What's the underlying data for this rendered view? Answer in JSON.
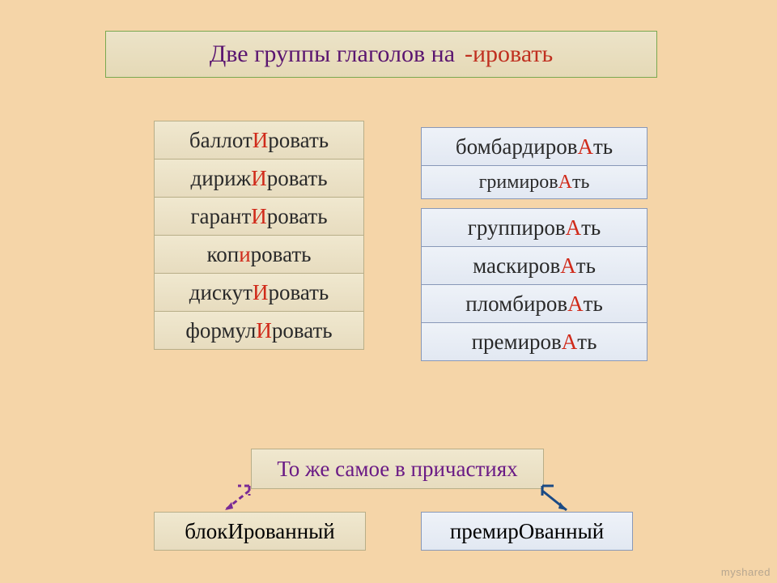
{
  "title": {
    "main": "Две группы глаголов на",
    "suffix": "-ировать"
  },
  "left_words": [
    {
      "pre": "баллот",
      "hl": "И",
      "post": "ровать"
    },
    {
      "pre": "дириж",
      "hl": "И",
      "post": "ровать"
    },
    {
      "pre": "гарант",
      "hl": "И",
      "post": "ровать"
    },
    {
      "pre": "коп",
      "hl": "и",
      "post": "ровать"
    },
    {
      "pre": "дискут",
      "hl": "И",
      "post": "ровать"
    },
    {
      "pre": "формул",
      "hl": "И",
      "post": "ровать"
    }
  ],
  "right_words": [
    {
      "pre": "бомбардиров",
      "hl": "А",
      "post": "ть",
      "small": false
    },
    {
      "pre": "гримиров",
      "hl": "А",
      "post": "ть",
      "small": true
    },
    {
      "pre": "группиров",
      "hl": "А",
      "post": "ть",
      "small": false,
      "gap_before": true
    },
    {
      "pre": "маскиров",
      "hl": "А",
      "post": "ть",
      "small": false
    },
    {
      "pre": "пломбиров",
      "hl": "А",
      "post": "ть",
      "small": false
    },
    {
      "pre": "премиров",
      "hl": "А",
      "post": "ть",
      "small": false
    }
  ],
  "subtitle": "То же самое в причастиях",
  "bottom": {
    "left": {
      "pre": "блок",
      "hl": "И",
      "post": "рованный"
    },
    "right": {
      "pre": "премир",
      "hl": "О",
      "post": "ванный"
    }
  },
  "colors": {
    "arrow_left": "#7a2a95",
    "arrow_right": "#1a4a85"
  },
  "watermark": "myshared"
}
